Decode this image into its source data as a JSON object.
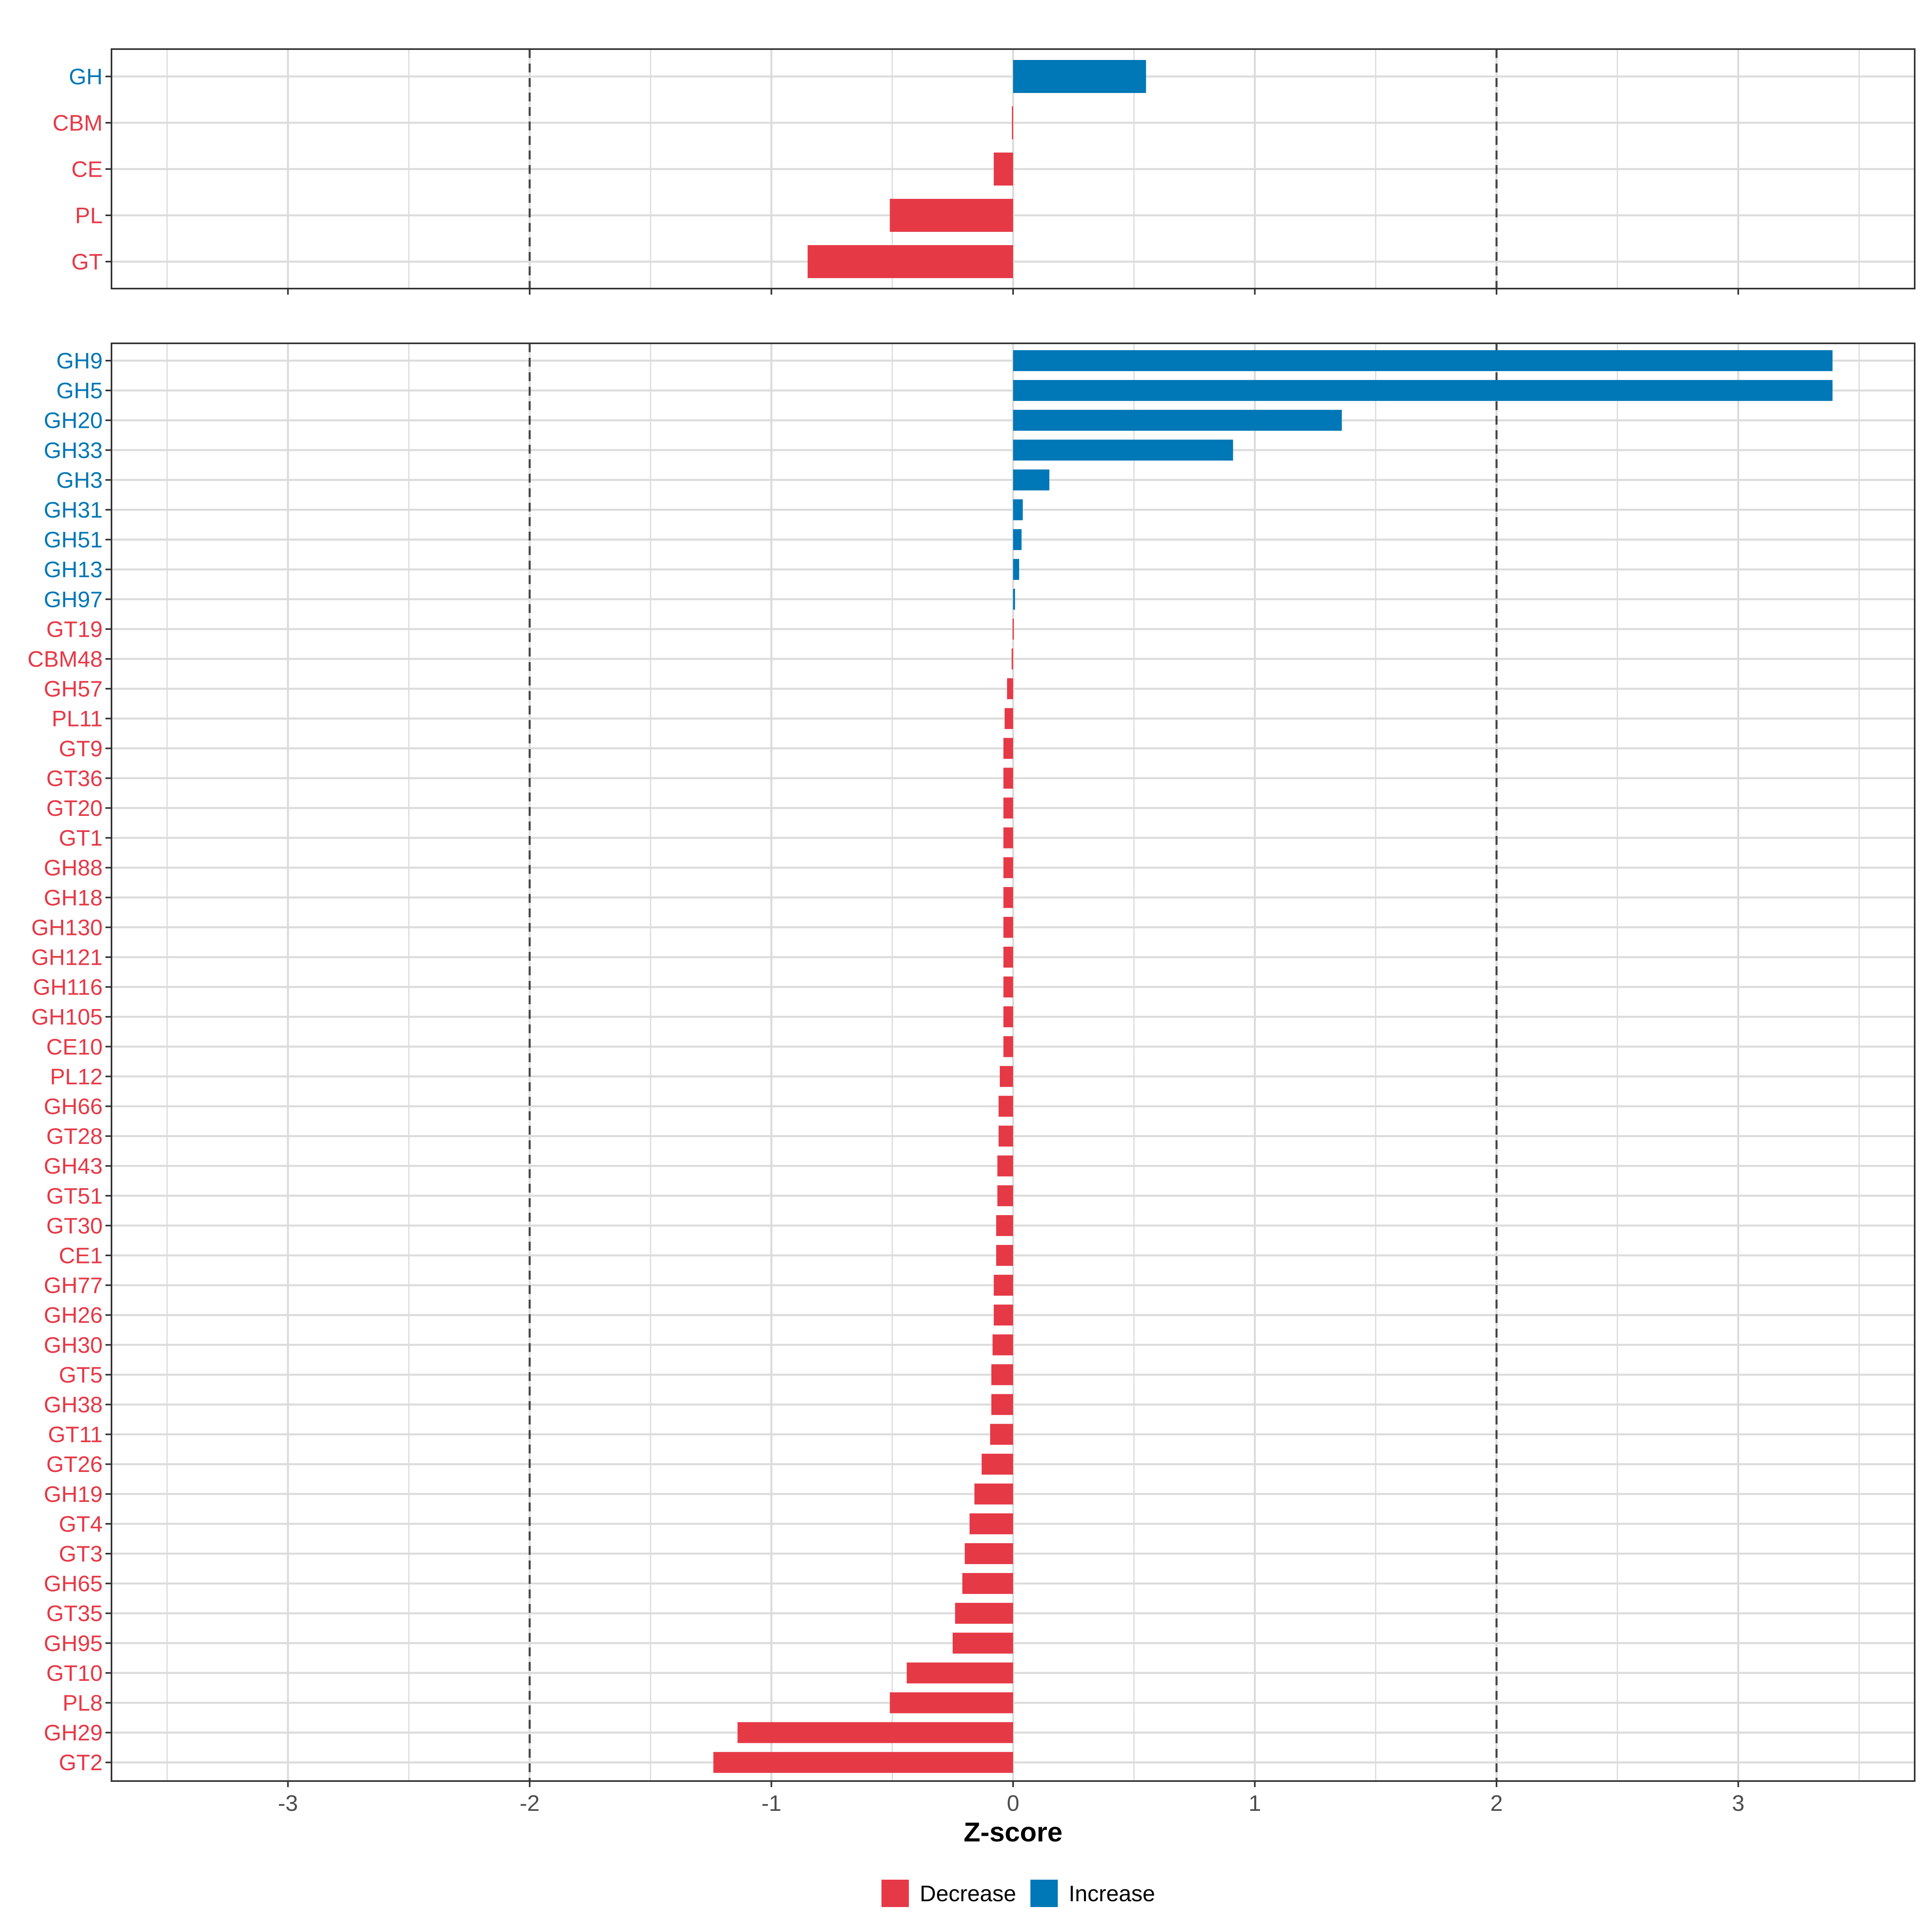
{
  "chart_data": {
    "type": "bar",
    "orientation": "horizontal",
    "xlabel": "Z-score",
    "xlim": [
      -3.73,
      3.73
    ],
    "xticks": [
      -3,
      -2,
      -1,
      0,
      1,
      2,
      3
    ],
    "xtick_labels": [
      "-3",
      "-2",
      "-1",
      "0",
      "1",
      "2",
      "3"
    ],
    "reference_lines": [
      -2,
      2
    ],
    "colors": {
      "Decrease": "#E63946",
      "Increase": "#0077B6"
    },
    "legend": {
      "position": "bottom",
      "entries": [
        "Decrease",
        "Increase"
      ]
    },
    "panels": [
      {
        "name": "class",
        "categories": [
          "GH",
          "CBM",
          "CE",
          "PL",
          "GT"
        ],
        "values": [
          0.55,
          -0.005,
          -0.08,
          -0.51,
          -0.85
        ],
        "direction": [
          "Increase",
          "Decrease",
          "Decrease",
          "Decrease",
          "Decrease"
        ]
      },
      {
        "name": "family",
        "categories": [
          "GH9",
          "GH5",
          "GH20",
          "GH33",
          "GH3",
          "GH31",
          "GH51",
          "GH13",
          "GH97",
          "GT19",
          "CBM48",
          "GH57",
          "PL11",
          "GT9",
          "GT36",
          "GT20",
          "GT1",
          "GH88",
          "GH18",
          "GH130",
          "GH121",
          "GH116",
          "GH105",
          "CE10",
          "PL12",
          "GH66",
          "GT28",
          "GH43",
          "GT51",
          "GT30",
          "CE1",
          "GH77",
          "GH26",
          "GH30",
          "GT5",
          "GH38",
          "GT11",
          "GT26",
          "GH19",
          "GT4",
          "GT3",
          "GH65",
          "GT35",
          "GH95",
          "GT10",
          "PL8",
          "GH29",
          "GT2"
        ],
        "values": [
          3.39,
          3.39,
          1.36,
          0.91,
          0.15,
          0.04,
          0.035,
          0.025,
          0.008,
          -0.002,
          -0.006,
          -0.025,
          -0.035,
          -0.04,
          -0.04,
          -0.04,
          -0.04,
          -0.04,
          -0.04,
          -0.04,
          -0.04,
          -0.04,
          -0.04,
          -0.04,
          -0.055,
          -0.06,
          -0.06,
          -0.065,
          -0.065,
          -0.07,
          -0.07,
          -0.08,
          -0.08,
          -0.085,
          -0.09,
          -0.09,
          -0.095,
          -0.13,
          -0.16,
          -0.18,
          -0.2,
          -0.21,
          -0.24,
          -0.25,
          -0.44,
          -0.51,
          -1.14,
          -1.24
        ],
        "direction": [
          "Increase",
          "Increase",
          "Increase",
          "Increase",
          "Increase",
          "Increase",
          "Increase",
          "Increase",
          "Increase",
          "Decrease",
          "Decrease",
          "Decrease",
          "Decrease",
          "Decrease",
          "Decrease",
          "Decrease",
          "Decrease",
          "Decrease",
          "Decrease",
          "Decrease",
          "Decrease",
          "Decrease",
          "Decrease",
          "Decrease",
          "Decrease",
          "Decrease",
          "Decrease",
          "Decrease",
          "Decrease",
          "Decrease",
          "Decrease",
          "Decrease",
          "Decrease",
          "Decrease",
          "Decrease",
          "Decrease",
          "Decrease",
          "Decrease",
          "Decrease",
          "Decrease",
          "Decrease",
          "Decrease",
          "Decrease",
          "Decrease",
          "Decrease",
          "Decrease",
          "Decrease",
          "Decrease"
        ]
      }
    ]
  }
}
